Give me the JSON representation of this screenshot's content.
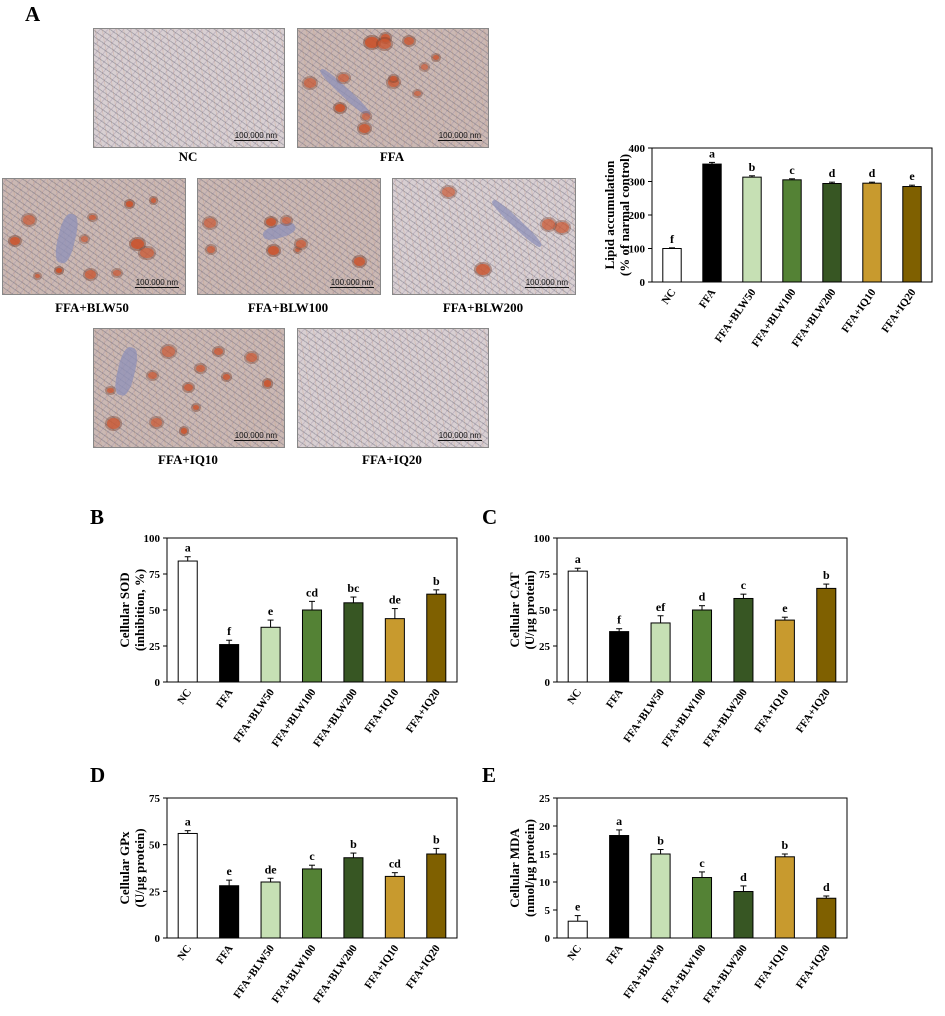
{
  "panel_A": {
    "letter": "A",
    "images": [
      {
        "label": "NC",
        "scale": "100.000 nm",
        "style": "sparse",
        "blobs": 0
      },
      {
        "label": "FFA",
        "scale": "100.000 nm",
        "style": "dense",
        "blobs": 14
      },
      {
        "label": "FFA+BLW50",
        "scale": "100.000 nm",
        "style": "dense",
        "blobs": 12
      },
      {
        "label": "FFA+BLW100",
        "scale": "100.000 nm",
        "style": "dense",
        "blobs": 8
      },
      {
        "label": "FFA+BLW200",
        "scale": "100.000 nm",
        "style": "medium",
        "blobs": 4
      },
      {
        "label": "FFA+IQ10",
        "scale": "100.000 nm",
        "style": "dense",
        "blobs": 13
      },
      {
        "label": "FFA+IQ20",
        "scale": "100.000 nm",
        "style": "sparse",
        "blobs": 0
      }
    ]
  },
  "colors": [
    "#ffffff",
    "#000000",
    "#c6e0b4",
    "#548235",
    "#375623",
    "#c89a2e",
    "#7f6000"
  ],
  "chart_data": [
    {
      "id": "A-lipid",
      "type": "bar",
      "title": "",
      "ylabel_lines": [
        "Lipid accumulation",
        "(% of narmal control)"
      ],
      "categories": [
        "NC",
        "FFA",
        "FFA+BLW50",
        "FFA+BLW100",
        "FFA+BLW200",
        "FFA+IQ10",
        "FFA+IQ20"
      ],
      "values": [
        100,
        352,
        313,
        305,
        294,
        295,
        285
      ],
      "errors": [
        2,
        5,
        4,
        3,
        4,
        3,
        4
      ],
      "sig_labels": [
        "f",
        "a",
        "b",
        "c",
        "d",
        "d",
        "e"
      ],
      "ylim": [
        0,
        400
      ],
      "yticks": [
        0,
        100,
        200,
        300,
        400
      ]
    },
    {
      "id": "B-sod",
      "type": "bar",
      "title": "",
      "letter": "B",
      "ylabel_lines": [
        "Cellular SOD",
        "(inhibition, %)"
      ],
      "categories": [
        "NC",
        "FFA",
        "FFA+BLW50",
        "FFA+BLW100",
        "FFA+BLW200",
        "FFA+IQ10",
        "FFA+IQ20"
      ],
      "values": [
        84,
        26,
        38,
        50,
        55,
        44,
        61
      ],
      "errors": [
        3,
        3,
        5,
        6,
        4,
        7,
        3
      ],
      "sig_labels": [
        "a",
        "f",
        "e",
        "cd",
        "bc",
        "de",
        "b"
      ],
      "ylim": [
        0,
        100
      ],
      "yticks": [
        0,
        25,
        50,
        75,
        100
      ]
    },
    {
      "id": "C-cat",
      "type": "bar",
      "title": "",
      "letter": "C",
      "ylabel_lines": [
        "Cellular CAT",
        "(U/µg protein)"
      ],
      "categories": [
        "NC",
        "FFA",
        "FFA+BLW50",
        "FFA+BLW100",
        "FFA+BLW200",
        "FFA+IQ10",
        "FFA+IQ20"
      ],
      "values": [
        77,
        35,
        41,
        50,
        58,
        43,
        65
      ],
      "errors": [
        2,
        2,
        5,
        3,
        3,
        2,
        3
      ],
      "sig_labels": [
        "a",
        "f",
        "ef",
        "d",
        "c",
        "e",
        "b"
      ],
      "ylim": [
        0,
        100
      ],
      "yticks": [
        0,
        25,
        50,
        75,
        100
      ]
    },
    {
      "id": "D-gpx",
      "type": "bar",
      "title": "",
      "letter": "D",
      "ylabel_lines": [
        "Cellular GPx",
        "(U/µg protein)"
      ],
      "categories": [
        "NC",
        "FFA",
        "FFA+BLW50",
        "FFA+BLW100",
        "FFA+BLW200",
        "FFA+IQ10",
        "FFA+IQ20"
      ],
      "values": [
        56,
        28,
        30,
        37,
        43,
        33,
        45
      ],
      "errors": [
        1.5,
        3,
        2,
        2,
        2.5,
        2,
        3
      ],
      "sig_labels": [
        "a",
        "e",
        "de",
        "c",
        "b",
        "cd",
        "b"
      ],
      "ylim": [
        0,
        75
      ],
      "yticks": [
        0,
        25,
        50,
        75
      ]
    },
    {
      "id": "E-mda",
      "type": "bar",
      "title": "",
      "letter": "E",
      "ylabel_lines": [
        "Cellular MDA",
        "(nmol/µg protein)"
      ],
      "categories": [
        "NC",
        "FFA",
        "FFA+BLW50",
        "FFA+BLW100",
        "FFA+BLW200",
        "FFA+IQ10",
        "FFA+IQ20"
      ],
      "values": [
        3,
        18.3,
        15,
        10.8,
        8.3,
        14.5,
        7.1
      ],
      "errors": [
        1,
        1,
        0.8,
        1,
        1,
        0.5,
        0.4
      ],
      "sig_labels": [
        "e",
        "a",
        "b",
        "c",
        "d",
        "b",
        "d"
      ],
      "ylim": [
        0,
        25
      ],
      "yticks": [
        0,
        5,
        10,
        15,
        20,
        25
      ]
    }
  ]
}
